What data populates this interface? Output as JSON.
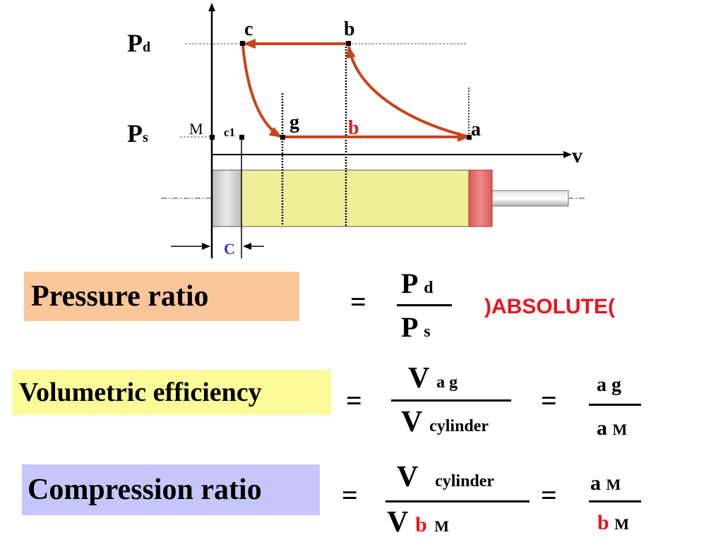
{
  "diagram": {
    "axis_v_label": "v",
    "pressure_labels": {
      "pd_main": "P",
      "pd_sub": "d",
      "ps_main": "P",
      "ps_sub": "s"
    },
    "points": {
      "c": "c",
      "b": "b",
      "g": "g",
      "a": "a",
      "M": "M",
      "c1": "c1",
      "b_lower": "b"
    },
    "clearance_label": "C",
    "colors": {
      "arrow": "#c8431a",
      "cylinder": "#efef9a",
      "piston": "#e06a6a",
      "head": "#cfcfcf"
    }
  },
  "formulas": {
    "pressure_ratio": {
      "label": "Pressure ratio",
      "label_bg": "#fbc79a",
      "equals": "=",
      "num_main": "P",
      "num_sub": "d",
      "den_main": "P",
      "den_sub": "s",
      "note": ")ABSOLUTE("
    },
    "volumetric_efficiency": {
      "label": "Volumetric efficiency",
      "label_bg": "#fbfb9a",
      "equals_1": "=",
      "num_main": "V",
      "num_sub": "a g",
      "den_main": "V",
      "den_sub": "cylinder",
      "equals_2": "=",
      "num2": "a g",
      "den2_main": "a",
      "den2_sub": "M"
    },
    "compression_ratio": {
      "label": "Compression ratio",
      "label_bg": "#c6c6fb",
      "equals_1": "=",
      "num_main": "V",
      "num_sub": "cylinder",
      "den_main": "V",
      "den_b": "b",
      "den_m": "M",
      "equals_2": "=",
      "num2_main": "a",
      "num2_sub": "M",
      "den2_b": "b",
      "den2_m": "M"
    }
  }
}
